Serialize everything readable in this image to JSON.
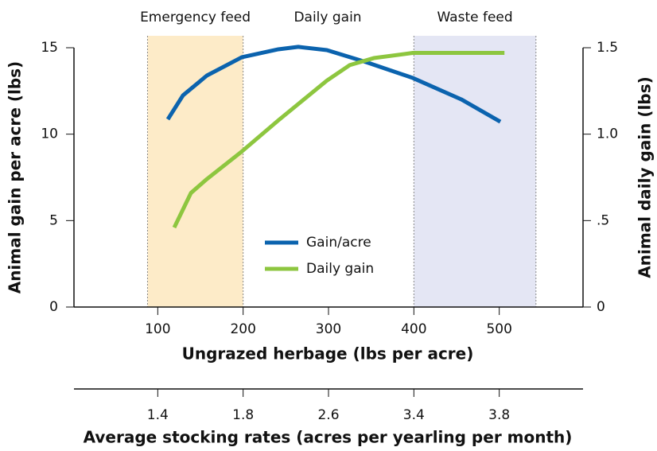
{
  "chart_data": {
    "type": "line",
    "xlabel": "Ungrazed herbage (lbs per acre)",
    "ylabel": "Animal gain per acre (lbs)",
    "y2label": "Animal daily gain (lbs)",
    "x2label": "Average stocking rates (acres per yearling per month)",
    "xlim": [
      0,
      600
    ],
    "xticks": [
      100,
      200,
      300,
      400,
      500
    ],
    "x2ticks": [
      {
        "value": 100,
        "label": "1.4"
      },
      {
        "value": 200,
        "label": "1.8"
      },
      {
        "value": 300,
        "label": "2.6"
      },
      {
        "value": 400,
        "label": "3.4"
      },
      {
        "value": 500,
        "label": "3.8"
      }
    ],
    "ylim": [
      0,
      15
    ],
    "yticks": [
      0,
      5,
      10,
      15
    ],
    "y2lim": [
      0,
      1.5
    ],
    "y2ticks": [
      0,
      {
        "value": 0.5,
        "label": ".5"
      },
      {
        "value": 1.0,
        "label": "1.0"
      },
      1.5
    ],
    "bands": [
      {
        "label": "Emergency feed",
        "x": [
          88,
          200
        ],
        "color": "#fdebc8"
      },
      {
        "label": "Waste feed",
        "x": [
          400,
          543
        ],
        "color": "#e4e6f4"
      }
    ],
    "center_label": "Daily gain",
    "legend": "center",
    "series": [
      {
        "name": "Gain/acre",
        "color": "#0b63ae",
        "x": [
          111.8,
          129.5,
          157.5,
          198.5,
          241.3,
          264.6,
          298.1,
          343.8,
          398.8,
          455.6,
          501.3
        ],
        "values": [
          10.86,
          12.24,
          13.39,
          14.45,
          14.91,
          15.05,
          14.86,
          14.17,
          13.25,
          12.01,
          10.72
        ]
      },
      {
        "name": "Daily gain",
        "color": "#8dc63f",
        "axis": "y2",
        "x": [
          119.3,
          138.9,
          157.5,
          198.5,
          241.3,
          298.1,
          325.1,
          353,
          398.8,
          455.6,
          506.1
        ],
        "values": [
          0.46,
          0.66,
          0.74,
          0.9,
          1.08,
          1.31,
          1.4,
          1.44,
          1.47,
          1.47,
          1.47
        ]
      }
    ]
  }
}
